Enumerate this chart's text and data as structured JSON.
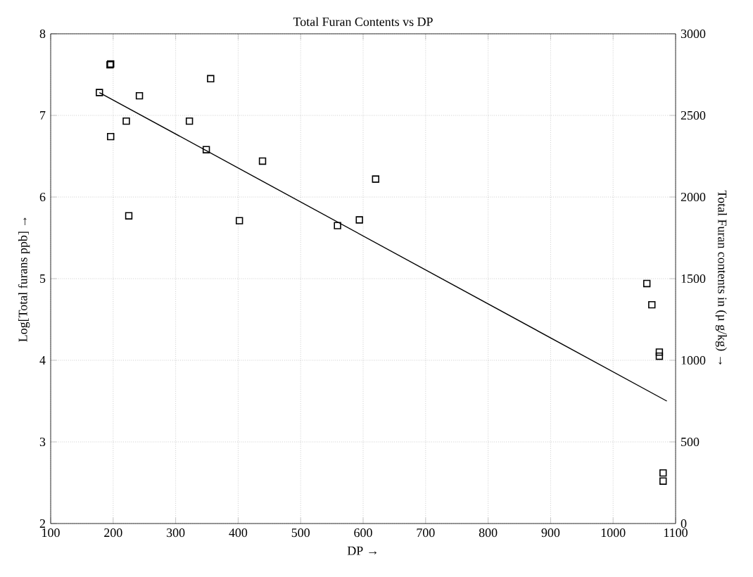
{
  "chart_data": {
    "type": "scatter",
    "title": "Total Furan Contents vs DP",
    "xlabel": "DP →",
    "ylabel": "Log[Total furans ppb] →",
    "y2label": "Total Furan contents in (µ g/kg) →",
    "series": [
      {
        "color": "#000000",
        "marker": "square",
        "x": [
          178,
          195,
          196,
          242,
          221,
          196,
          225,
          356,
          322,
          349,
          439,
          402,
          559,
          594,
          620,
          1054,
          1062,
          1074,
          1074,
          1080,
          1080
        ],
        "values": [
          7.28,
          7.62,
          7.63,
          7.24,
          6.93,
          6.74,
          5.77,
          7.45,
          6.93,
          6.58,
          6.44,
          5.71,
          5.65,
          5.72,
          6.22,
          4.94,
          4.68,
          4.05,
          4.1,
          2.62,
          2.52
        ]
      },
      {
        "type": "line",
        "color": "#000000",
        "marker": "none",
        "line_style": "solid",
        "x": [
          178,
          1086
        ],
        "values": [
          7.28,
          3.5
        ]
      }
    ],
    "xlim": [
      100,
      1100
    ],
    "ylim": [
      2,
      8
    ],
    "xticks": [
      100,
      200,
      300,
      400,
      500,
      600,
      700,
      800,
      900,
      1000,
      1100
    ],
    "yticks": [
      2,
      3,
      4,
      5,
      6,
      7,
      8
    ],
    "y2lim": [
      0,
      3000
    ],
    "y2ticks": [
      0,
      500,
      1000,
      1500,
      2000,
      2500,
      3000
    ],
    "grid": true
  }
}
